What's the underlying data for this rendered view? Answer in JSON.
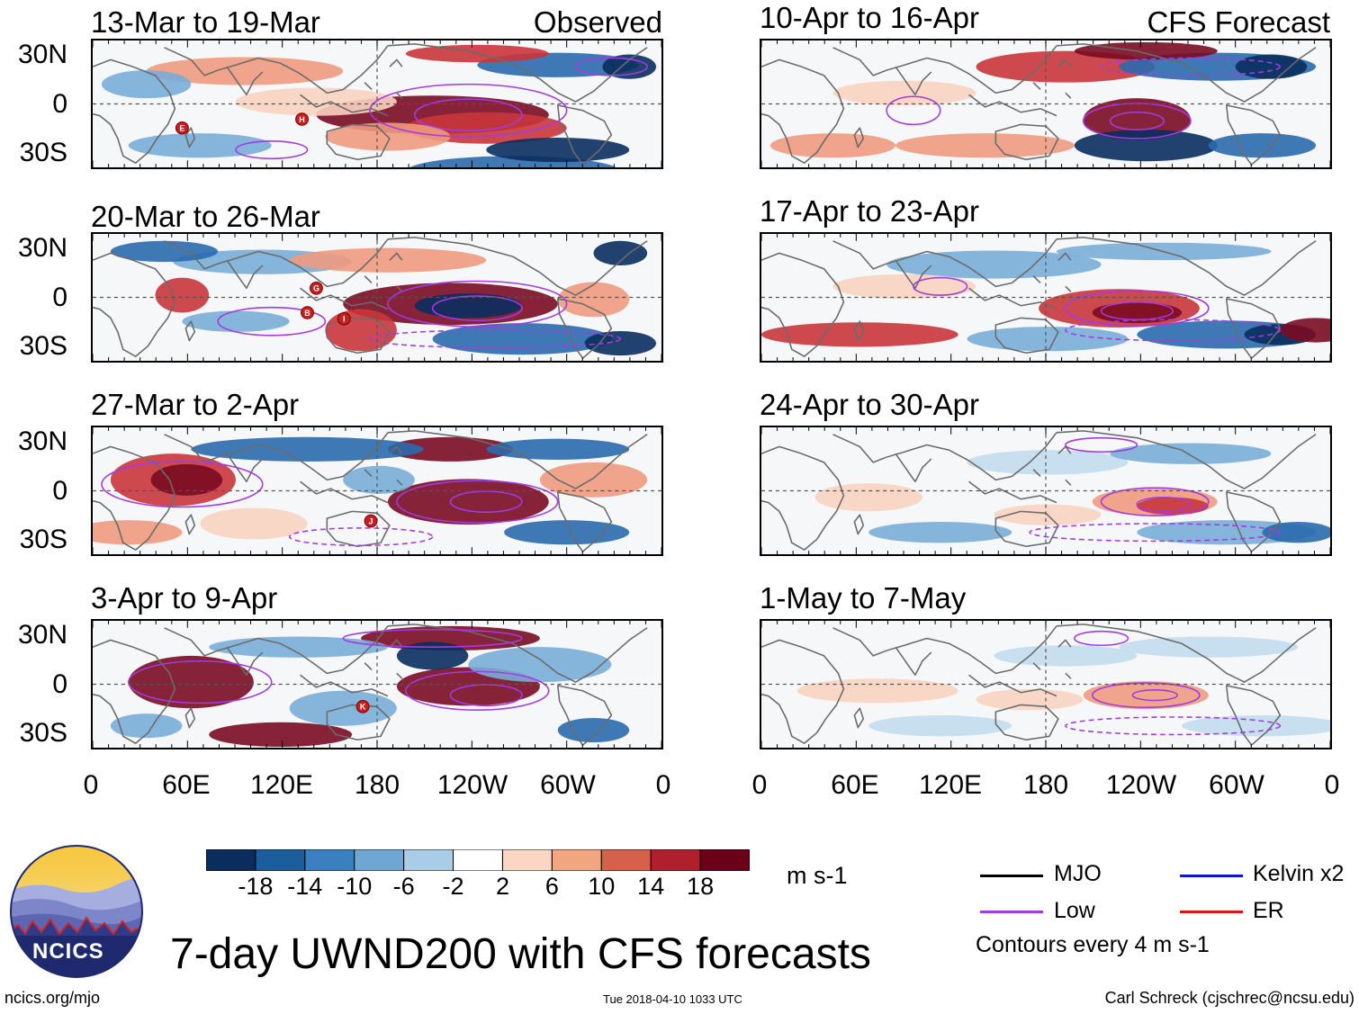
{
  "chart_data": {
    "type": "heatmap",
    "title": "7-day UWND200 with CFS forecasts",
    "units": "m s-1",
    "observed_label": "Observed",
    "forecast_label": "CFS Forecast",
    "lat_ticks": [
      "30N",
      "0",
      "30S"
    ],
    "lon_ticks": [
      "0",
      "60E",
      "120E",
      "180",
      "120W",
      "60W",
      "0"
    ],
    "lon_values_deg_east": [
      0,
      60,
      120,
      180,
      240,
      300,
      360
    ],
    "lat_range": [
      -40,
      40
    ],
    "observed_panels": [
      {
        "period": "13-Mar to 19-Mar",
        "storms": [
          "E",
          "H"
        ]
      },
      {
        "period": "20-Mar to 26-Mar",
        "storms": [
          "G",
          "B",
          "I"
        ]
      },
      {
        "period": "27-Mar to 2-Apr",
        "storms": [
          "J"
        ]
      },
      {
        "period": "3-Apr to 9-Apr",
        "storms": [
          "K"
        ]
      }
    ],
    "forecast_panels": [
      {
        "period": "10-Apr to 16-Apr"
      },
      {
        "period": "17-Apr to 23-Apr"
      },
      {
        "period": "24-Apr to 30-Apr"
      },
      {
        "period": "1-May to 7-May"
      }
    ],
    "colorbar": {
      "ticks": [
        -18,
        -14,
        -10,
        -6,
        -2,
        2,
        6,
        10,
        14,
        18
      ],
      "tick_labels": [
        "-18",
        "-14",
        "-10",
        "-6",
        "-2",
        "2",
        "6",
        "10",
        "14",
        "18"
      ],
      "colors": [
        "#0a2d5e",
        "#1c5d9e",
        "#3a7fbf",
        "#6ea7d4",
        "#a9cde6",
        "#d9e9f3",
        "#ffffff",
        "#fbd7c3",
        "#f2a67f",
        "#d7604d",
        "#b01f2c",
        "#6b0019"
      ]
    },
    "legend": {
      "contour_spacing": "Contours every 4 m s-1",
      "items": [
        {
          "label": "MJO",
          "color": "#000000"
        },
        {
          "label": "Kelvin x2",
          "color": "#0b18cc"
        },
        {
          "label": "Low",
          "color": "#a23be0"
        },
        {
          "label": "ER",
          "color": "#d61515"
        }
      ]
    }
  },
  "logo": {
    "text": "NCICS"
  },
  "footer": {
    "url": "ncics.org/mjo",
    "timestamp": "Tue 2018-04-10 1033 UTC",
    "credit": "Carl Schreck (cjschrec@ncsu.edu)"
  }
}
